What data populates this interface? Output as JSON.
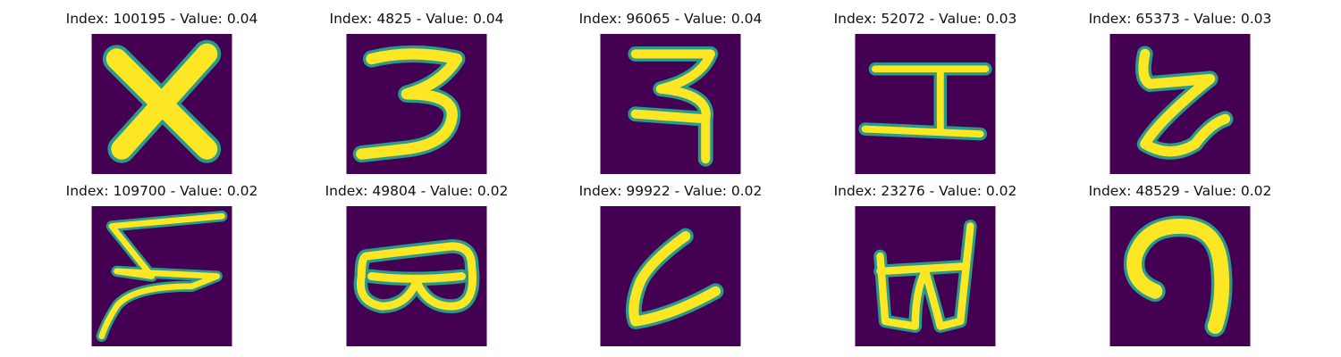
{
  "grid": {
    "items": [
      {
        "index": "100195",
        "value": "0.04",
        "glyph": "x-shape"
      },
      {
        "index": "4825",
        "value": "0.04",
        "glyph": "three-shape"
      },
      {
        "index": "96065",
        "value": "0.04",
        "glyph": "devanagari-like-shape"
      },
      {
        "index": "52072",
        "value": "0.03",
        "glyph": "capital-i-shape"
      },
      {
        "index": "65373",
        "value": "0.03",
        "glyph": "curly-z-shape"
      },
      {
        "index": "109700",
        "value": "0.02",
        "glyph": "zigzag-shape"
      },
      {
        "index": "49804",
        "value": "0.02",
        "glyph": "goggles-shape"
      },
      {
        "index": "99922",
        "value": "0.02",
        "glyph": "hook-l-shape"
      },
      {
        "index": "23276",
        "value": "0.02",
        "glyph": "tied-loops-shape"
      },
      {
        "index": "48529",
        "value": "0.02",
        "glyph": "arch-shape"
      }
    ]
  },
  "labels": {
    "index_prefix": "Index: ",
    "value_prefix": " - Value: "
  },
  "colors": {
    "background": "#440154",
    "stroke_outer": "#2a9a8a",
    "stroke_inner": "#fde725"
  }
}
